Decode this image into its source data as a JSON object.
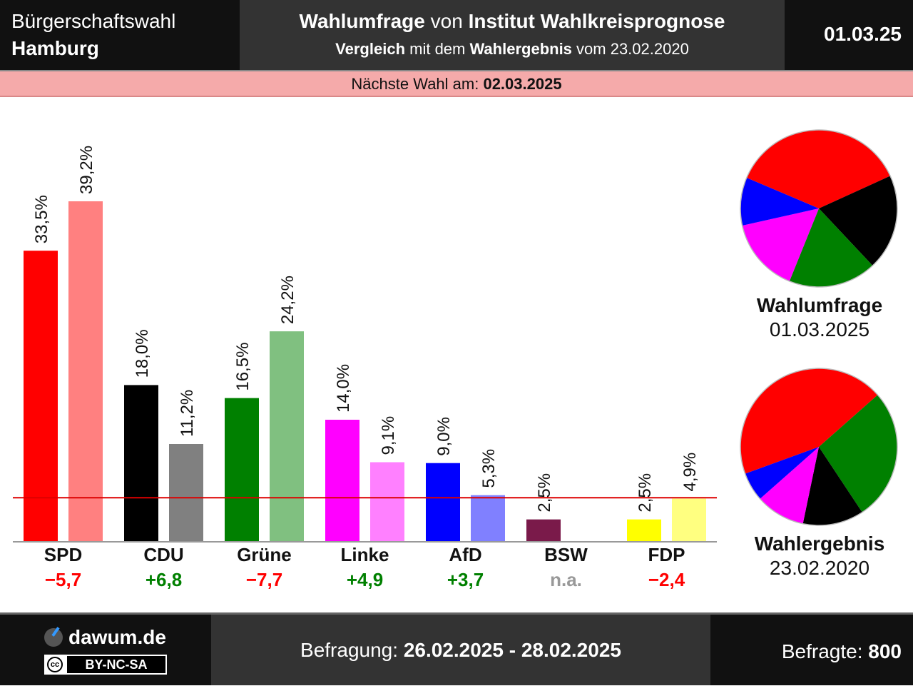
{
  "header": {
    "region_line1": "Bürgerschaftswahl",
    "region_line2": "Hamburg",
    "title_a": "Wahlumfrage",
    "title_b": " von ",
    "title_c": "Institut Wahlkreisprognose",
    "subtitle_a": "Vergleich",
    "subtitle_b": " mit dem ",
    "subtitle_c": "Wahlergebnis",
    "subtitle_d": " vom 23.02.2020",
    "date": "01.03.25"
  },
  "next_election": {
    "label": "Nächste Wahl am: ",
    "date": "02.03.2025"
  },
  "chart_data": {
    "type": "bar",
    "categories": [
      "SPD",
      "CDU",
      "Grüne",
      "Linke",
      "AfD",
      "BSW",
      "FDP"
    ],
    "series": [
      {
        "name": "Wahlumfrage",
        "values": [
          33.5,
          18.0,
          16.5,
          14.0,
          9.0,
          2.5,
          2.5
        ],
        "labels": [
          "33,5%",
          "18,0%",
          "16,5%",
          "14,0%",
          "9,0%",
          "2,5%",
          "2,5%"
        ]
      },
      {
        "name": "Wahlergebnis",
        "values": [
          39.2,
          11.2,
          24.2,
          9.1,
          5.3,
          null,
          4.9
        ],
        "labels": [
          "39,2%",
          "11,2%",
          "24,2%",
          "9,1%",
          "5,3%",
          "",
          "4,9%"
        ]
      }
    ],
    "colors_poll": [
      "#ff0000",
      "#000000",
      "#008000",
      "#ff00ff",
      "#0000ff",
      "#7a1a4a",
      "#ffff00"
    ],
    "colors_result": [
      "#ff8080",
      "#808080",
      "#80c080",
      "#ff80ff",
      "#8080ff",
      "#bc8ca4",
      "#ffff80"
    ],
    "changes": [
      "−5,7",
      "+6,8",
      "−7,7",
      "+4,9",
      "+3,7",
      "n.a.",
      "−2,4"
    ],
    "change_colors": [
      "#ff0000",
      "#008000",
      "#ff0000",
      "#008000",
      "#008000",
      "#999999",
      "#ff0000"
    ],
    "threshold": 5,
    "threshold_color": "#dd0000",
    "ylim": [
      0,
      42
    ],
    "title": "",
    "xlabel": "",
    "ylabel": ""
  },
  "pies": [
    {
      "label_a": "Wahlumfrage",
      "label_b": "01.03.2025",
      "values": [
        33.5,
        18.0,
        16.5,
        14.0,
        9.0
      ],
      "colors": [
        "#ff0000",
        "#000000",
        "#008000",
        "#ff00ff",
        "#0000ff"
      ]
    },
    {
      "label_a": "Wahlergebnis",
      "label_b": "23.02.2020",
      "values": [
        39.2,
        24.2,
        11.2,
        9.1,
        5.3
      ],
      "colors": [
        "#ff0000",
        "#008000",
        "#000000",
        "#ff00ff",
        "#0000ff"
      ]
    }
  ],
  "footer": {
    "site": "dawum.de",
    "license": "BY-NC-SA",
    "cc_icon": "cc",
    "survey_label": "Befragung: ",
    "survey_period": "26.02.2025 - 28.02.2025",
    "respondents_label": "Befragte: ",
    "respondents": "800"
  }
}
